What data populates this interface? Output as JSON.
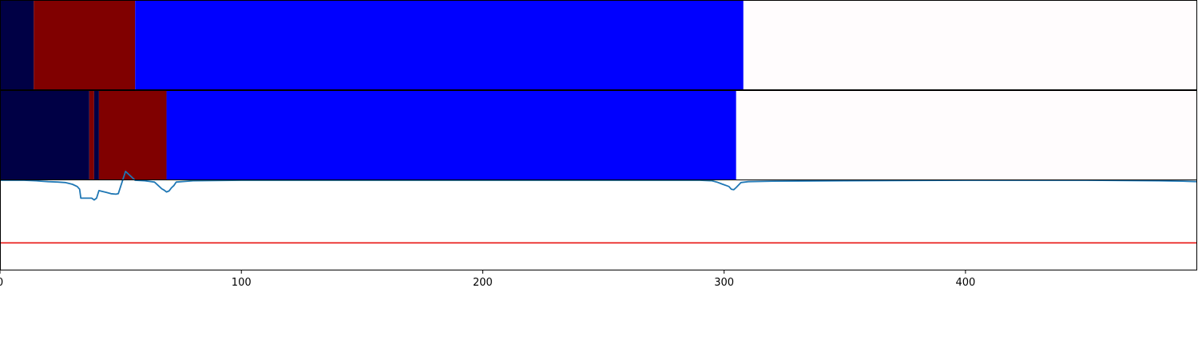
{
  "chart_data": {
    "type": "segmented-bars-and-line",
    "x_range": [
      0,
      496
    ],
    "x_ticks": [
      0,
      100,
      200,
      300,
      400
    ],
    "colors": {
      "class_a": "#000045",
      "class_b": "#800000",
      "class_c": "#0000ff",
      "empty": "#fffcfd",
      "curve": "#1f77b4",
      "threshold": "#e8100f"
    },
    "segment_rows": [
      {
        "segments": [
          {
            "start": 0,
            "end": 14,
            "class": "class_a"
          },
          {
            "start": 14,
            "end": 56,
            "class": "class_b"
          },
          {
            "start": 56,
            "end": 308,
            "class": "class_c"
          },
          {
            "start": 308,
            "end": 496,
            "class": "empty"
          }
        ]
      },
      {
        "segments": [
          {
            "start": 0,
            "end": 37,
            "class": "class_a"
          },
          {
            "start": 37,
            "end": 39,
            "class": "class_b"
          },
          {
            "start": 39,
            "end": 41,
            "class": "class_a"
          },
          {
            "start": 41,
            "end": 69,
            "class": "class_b"
          },
          {
            "start": 69,
            "end": 305,
            "class": "class_c"
          },
          {
            "start": 305,
            "end": 496,
            "class": "empty"
          }
        ]
      }
    ],
    "line_panel": {
      "ylim": [
        -0.5,
        0.5
      ],
      "threshold": -0.2,
      "x": [
        0,
        10,
        15,
        17,
        20,
        24,
        27,
        30,
        32,
        33,
        33.5,
        37,
        38,
        39,
        40,
        41,
        44,
        46,
        48,
        49,
        52,
        56,
        60,
        64,
        66,
        67,
        68,
        69,
        70,
        71,
        72,
        73,
        80,
        100,
        150,
        200,
        250,
        290,
        295,
        297,
        299,
        300,
        301,
        302,
        303,
        304,
        305,
        307,
        310,
        320,
        350,
        400,
        450,
        480,
        490,
        496
      ],
      "y": [
        0.5,
        0.5,
        0.495,
        0.49,
        0.485,
        0.48,
        0.475,
        0.455,
        0.43,
        0.4,
        0.3,
        0.3,
        0.3,
        0.28,
        0.3,
        0.385,
        0.365,
        0.35,
        0.345,
        0.35,
        0.6,
        0.5,
        0.495,
        0.48,
        0.43,
        0.405,
        0.39,
        0.37,
        0.38,
        0.415,
        0.44,
        0.48,
        0.495,
        0.5,
        0.5,
        0.5,
        0.5,
        0.5,
        0.495,
        0.48,
        0.46,
        0.45,
        0.44,
        0.43,
        0.4,
        0.395,
        0.42,
        0.475,
        0.485,
        0.49,
        0.495,
        0.5,
        0.5,
        0.495,
        0.49,
        0.485
      ]
    }
  }
}
